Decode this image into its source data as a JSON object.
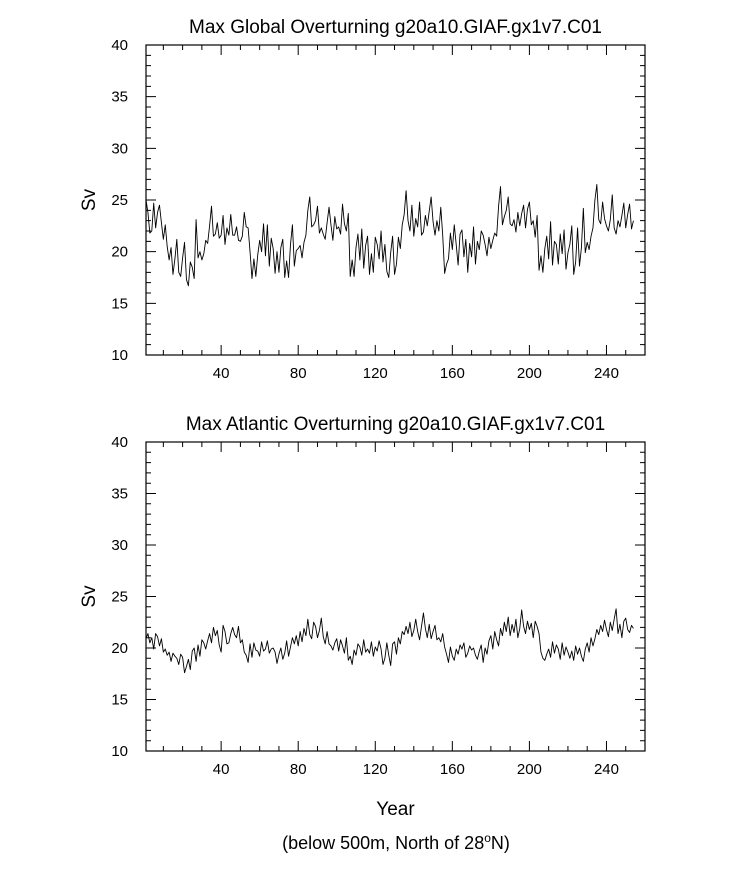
{
  "chart_data": [
    {
      "type": "line",
      "title": "Max Global Overturning g20a10.GIAF.gx1v7.C01",
      "ylabel": "Sv",
      "xlabel": "",
      "xlim": [
        1,
        260
      ],
      "ylim": [
        10,
        40
      ],
      "x_ticks": [
        40,
        80,
        120,
        160,
        200,
        240
      ],
      "x_tick_labels": [
        "40",
        "80",
        "120",
        "160",
        "200",
        "240"
      ],
      "y_ticks": [
        10,
        15,
        20,
        25,
        30,
        35,
        40
      ],
      "y_tick_labels": [
        "10",
        "15",
        "20",
        "25",
        "30",
        "35",
        "40"
      ],
      "grid": false,
      "legend": "none",
      "series": [
        {
          "x_start": 1,
          "x_step": 1,
          "values": [
            25.0,
            23.8,
            21.8,
            22.0,
            24.7,
            22.3,
            23.8,
            24.5,
            22.8,
            21.2,
            22.6,
            20.5,
            19.2,
            20.4,
            17.8,
            19.3,
            21.2,
            18.0,
            17.6,
            19.4,
            20.9,
            17.3,
            16.7,
            19.0,
            18.5,
            17.4,
            23.1,
            19.4,
            20.0,
            19.2,
            19.8,
            21.1,
            20.8,
            22.5,
            24.4,
            21.5,
            21.7,
            22.8,
            21.3,
            21.6,
            23.5,
            20.7,
            22.3,
            21.6,
            23.6,
            21.6,
            21.6,
            22.4,
            21.1,
            21.0,
            21.5,
            23.8,
            22.4,
            22.3,
            20.0,
            17.4,
            19.3,
            17.6,
            19.7,
            21.1,
            20.0,
            22.7,
            19.6,
            22.6,
            18.6,
            21.3,
            20.3,
            17.9,
            20.0,
            18.0,
            20.4,
            21.2,
            17.5,
            19.1,
            17.5,
            20.7,
            22.6,
            18.6,
            20.1,
            20.3,
            20.6,
            19.4,
            20.9,
            21.6,
            24.0,
            25.3,
            22.4,
            22.6,
            23.0,
            24.4,
            21.8,
            22.3,
            21.7,
            21.2,
            22.8,
            24.3,
            22.6,
            21.1,
            23.4,
            22.2,
            22.4,
            21.7,
            24.6,
            22.7,
            22.0,
            23.7,
            17.6,
            19.2,
            17.6,
            20.4,
            21.7,
            19.2,
            22.2,
            18.4,
            20.6,
            21.5,
            17.8,
            19.8,
            18.0,
            21.4,
            20.7,
            19.3,
            22.0,
            19.0,
            20.7,
            18.1,
            17.5,
            19.9,
            21.5,
            17.8,
            18.8,
            21.4,
            20.3,
            22.6,
            23.6,
            25.9,
            23.0,
            22.0,
            24.5,
            21.5,
            23.2,
            22.4,
            24.8,
            21.6,
            21.9,
            23.5,
            22.5,
            23.9,
            25.3,
            22.9,
            21.6,
            23.0,
            22.0,
            24.3,
            21.6,
            17.9,
            18.8,
            19.3,
            21.8,
            20.2,
            22.6,
            20.7,
            18.7,
            21.7,
            22.1,
            19.5,
            21.2,
            18.0,
            20.8,
            19.5,
            22.4,
            18.8,
            21.0,
            20.2,
            22.0,
            21.6,
            20.7,
            19.6,
            21.4,
            20.3,
            21.1,
            21.8,
            21.5,
            24.4,
            26.3,
            22.6,
            23.4,
            24.0,
            25.3,
            22.7,
            22.5,
            23.1,
            21.9,
            23.8,
            22.5,
            23.7,
            24.5,
            22.3,
            24.1,
            24.8,
            22.6,
            23.0,
            21.4,
            23.5,
            18.2,
            19.6,
            18.0,
            20.3,
            21.5,
            19.3,
            22.9,
            18.7,
            21.0,
            20.7,
            18.8,
            21.7,
            19.8,
            22.1,
            18.3,
            19.9,
            20.7,
            22.5,
            17.8,
            19.0,
            22.3,
            18.6,
            20.4,
            24.2,
            19.9,
            20.9,
            20.2,
            21.5,
            22.3,
            25.0,
            26.5,
            23.1,
            22.7,
            24.8,
            23.2,
            22.5,
            22.0,
            23.1,
            25.5,
            22.3,
            21.7,
            23.0,
            22.4,
            23.5,
            24.7,
            22.3,
            23.6,
            24.6,
            22.2,
            23.0
          ]
        }
      ]
    },
    {
      "type": "line",
      "title": "Max Atlantic Overturning g20a10.GIAF.gx1v7.C01",
      "ylabel": "Sv",
      "xlabel": "Year",
      "xlim": [
        1,
        260
      ],
      "ylim": [
        10,
        40
      ],
      "x_ticks": [
        40,
        80,
        120,
        160,
        200,
        240
      ],
      "x_tick_labels": [
        "40",
        "80",
        "120",
        "160",
        "200",
        "240"
      ],
      "y_ticks": [
        10,
        15,
        20,
        25,
        30,
        35,
        40
      ],
      "y_tick_labels": [
        "10",
        "15",
        "20",
        "25",
        "30",
        "35",
        "40"
      ],
      "grid": false,
      "legend": "none",
      "series": [
        {
          "x_start": 1,
          "x_step": 1,
          "values": [
            20.9,
            21.4,
            20.5,
            21.0,
            19.9,
            21.4,
            21.1,
            20.2,
            20.9,
            19.6,
            19.9,
            19.3,
            19.6,
            18.7,
            19.5,
            19.2,
            19.0,
            18.4,
            19.4,
            19.1,
            17.6,
            18.2,
            18.9,
            17.9,
            19.7,
            20.0,
            18.7,
            20.3,
            19.2,
            20.8,
            20.5,
            19.9,
            20.7,
            21.4,
            20.5,
            22.0,
            21.2,
            21.7,
            20.3,
            19.6,
            22.2,
            21.6,
            20.4,
            20.5,
            21.4,
            22.0,
            21.3,
            21.0,
            22.1,
            20.5,
            20.8,
            19.6,
            19.3,
            18.6,
            20.4,
            19.1,
            20.5,
            19.8,
            19.7,
            19.2,
            20.6,
            19.7,
            19.9,
            20.7,
            19.5,
            19.9,
            20.0,
            19.6,
            18.5,
            19.4,
            20.0,
            18.9,
            19.5,
            20.7,
            19.2,
            20.1,
            21.0,
            20.4,
            21.2,
            20.2,
            21.6,
            20.6,
            21.9,
            21.2,
            22.8,
            21.3,
            20.9,
            22.5,
            22.1,
            21.0,
            21.7,
            22.9,
            21.1,
            20.4,
            21.6,
            20.4,
            20.2,
            19.8,
            20.5,
            20.9,
            19.7,
            20.8,
            20.2,
            19.5,
            21.0,
            18.8,
            19.2,
            18.4,
            19.8,
            19.3,
            20.4,
            20.1,
            19.3,
            20.8,
            19.6,
            19.9,
            19.5,
            20.6,
            19.2,
            20.1,
            19.7,
            20.7,
            19.9,
            18.4,
            19.0,
            20.5,
            19.3,
            18.3,
            20.4,
            20.6,
            19.4,
            21.0,
            20.4,
            21.6,
            21.3,
            22.1,
            21.4,
            22.5,
            21.1,
            21.7,
            22.8,
            21.6,
            20.8,
            22.1,
            23.4,
            21.9,
            21.0,
            22.3,
            20.9,
            21.6,
            22.2,
            20.8,
            21.0,
            20.6,
            21.4,
            20.1,
            19.4,
            18.6,
            20.1,
            19.2,
            18.8,
            19.9,
            19.4,
            20.3,
            19.9,
            20.5,
            19.1,
            19.5,
            20.2,
            19.8,
            20.0,
            19.3,
            18.9,
            19.7,
            20.3,
            18.6,
            20.0,
            19.4,
            20.7,
            21.2,
            19.9,
            21.6,
            20.8,
            20.2,
            21.9,
            21.2,
            22.5,
            21.6,
            23.0,
            21.2,
            22.3,
            21.5,
            22.8,
            21.0,
            21.9,
            23.7,
            22.1,
            21.4,
            22.6,
            21.8,
            22.4,
            21.0,
            22.6,
            22.1,
            21.4,
            19.6,
            19.0,
            18.8,
            19.4,
            19.9,
            19.1,
            20.6,
            19.5,
            20.3,
            19.9,
            18.9,
            20.5,
            19.3,
            20.1,
            19.6,
            19.0,
            19.7,
            18.8,
            20.2,
            19.4,
            20.0,
            19.2,
            18.7,
            19.9,
            20.5,
            19.6,
            21.0,
            20.2,
            20.9,
            21.8,
            21.3,
            22.2,
            21.6,
            22.7,
            21.8,
            21.1,
            22.5,
            21.7,
            22.8,
            23.8,
            21.4,
            22.3,
            21.0,
            22.6,
            22.9,
            21.8,
            21.5,
            22.2,
            21.9
          ]
        }
      ]
    }
  ],
  "caption": {
    "before": "(below 500m, North of 28",
    "superscript": "o",
    "after": "N)"
  }
}
